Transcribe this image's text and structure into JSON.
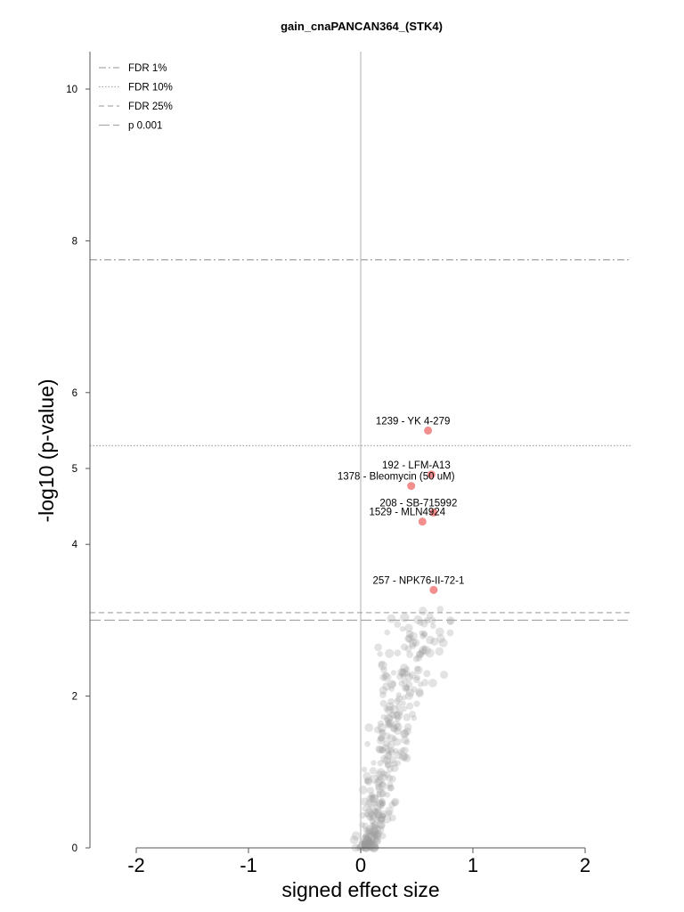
{
  "chart_data": {
    "type": "scatter",
    "title": "gain_cnaPANCAN364_(STK4)",
    "xlabel": "signed effect size",
    "ylabel": "-log10 (p-value)",
    "xlim": [
      -2.4,
      2.4
    ],
    "ylim": [
      0,
      10.5
    ],
    "x_ticks": [
      "-2",
      "-1",
      "0",
      "1",
      "2"
    ],
    "y_ticks": [
      "0",
      "2",
      "4",
      "5",
      "6",
      "8",
      "10"
    ],
    "grid": false,
    "legend_position": "top-left",
    "thresholds": [
      {
        "name": "FDR 1%",
        "y": 7.75,
        "style": "dashdot"
      },
      {
        "name": "FDR 10%",
        "y": 5.3,
        "style": "dotted"
      },
      {
        "name": "FDR 25%",
        "y": 3.1,
        "style": "dashed"
      },
      {
        "name": "p 0.001",
        "y": 3.0,
        "style": "longdash"
      }
    ],
    "highlighted_points": [
      {
        "label": "1239 - YK 4-279",
        "x": 0.6,
        "y": 5.5
      },
      {
        "label": "192 - LFM-A13",
        "x": 0.63,
        "y": 4.92
      },
      {
        "label": "1378 - Bleomycin (50 uM)",
        "x": 0.45,
        "y": 4.77
      },
      {
        "label": "208 - SB-715992",
        "x": 0.65,
        "y": 4.42
      },
      {
        "label": "1529 - MLN4924",
        "x": 0.55,
        "y": 4.3
      },
      {
        "label": "257 - NPK76-II-72-1",
        "x": 0.65,
        "y": 3.4
      }
    ],
    "background_point_count": 340,
    "colors": {
      "highlight": "#f28e8e",
      "background": "#9a9a9a",
      "zero_line": "#c8c8c8",
      "threshold": "#aaaaaa",
      "axis": "#555555"
    }
  }
}
